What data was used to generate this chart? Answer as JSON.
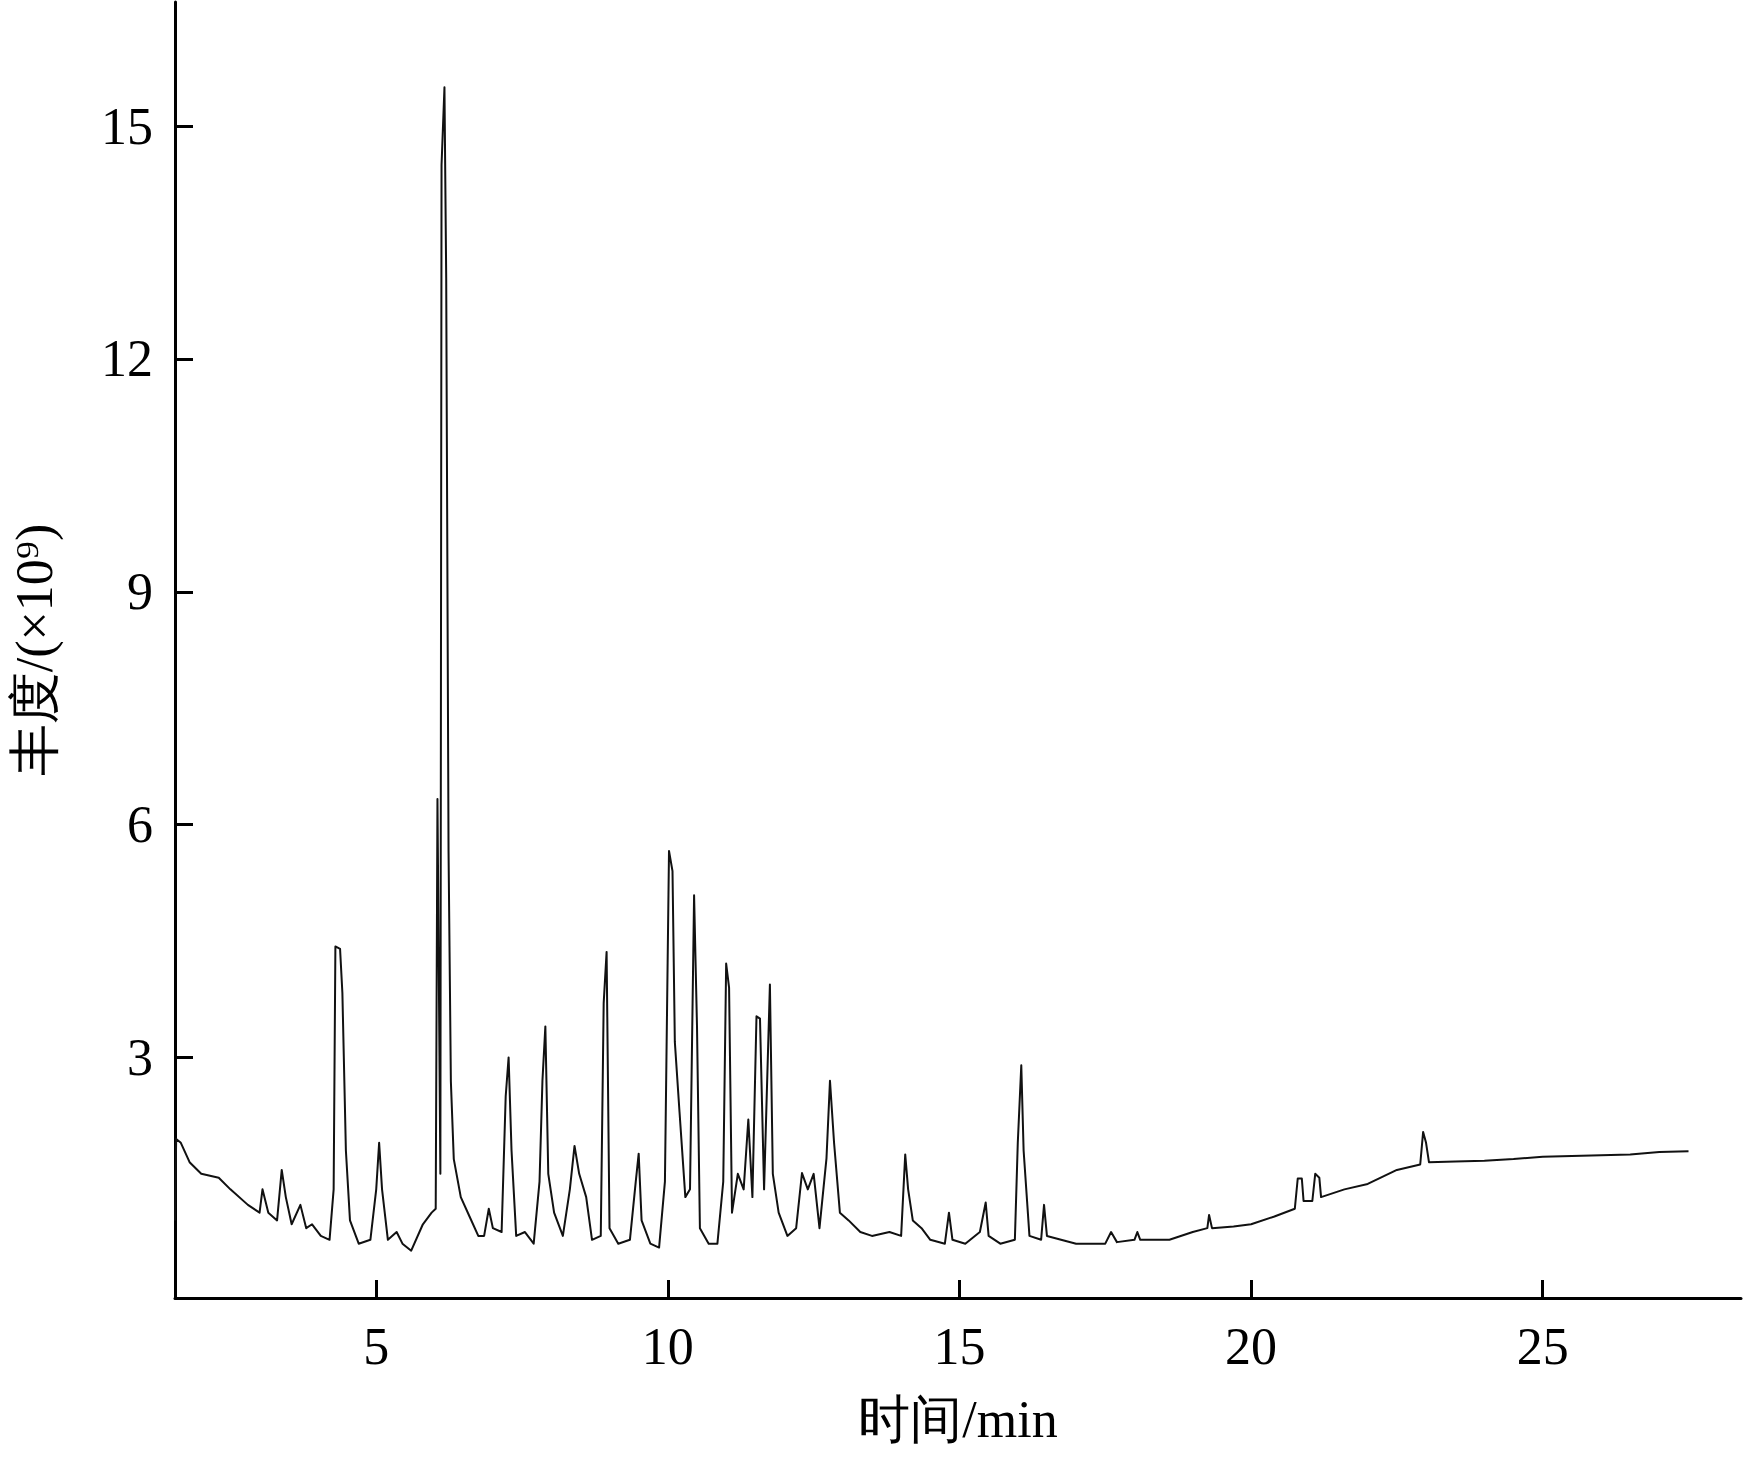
{
  "chart_data": {
    "type": "line",
    "xlabel": "时间/min",
    "ylabel": "丰度/(×10⁹)",
    "color": "#111111",
    "xlim": [
      1.55,
      28.4
    ],
    "xticks": [
      5,
      10,
      15,
      20,
      25
    ],
    "ylim": [
      -0.1,
      16.6
    ],
    "yticks": [
      3,
      6,
      9,
      12,
      15
    ],
    "grid": false,
    "marker": "none",
    "line_style": "solid",
    "x": [
      1.55,
      1.57,
      1.65,
      1.8,
      2.0,
      2.3,
      2.5,
      2.8,
      3.0,
      3.05,
      3.15,
      3.3,
      3.38,
      3.45,
      3.55,
      3.7,
      3.8,
      3.9,
      4.05,
      4.2,
      4.27,
      4.3,
      4.38,
      4.42,
      4.48,
      4.55,
      4.7,
      4.9,
      5.0,
      5.05,
      5.1,
      5.2,
      5.35,
      5.45,
      5.6,
      5.8,
      5.95,
      6.02,
      6.05,
      6.1,
      6.12,
      6.17,
      6.2,
      6.24,
      6.28,
      6.33,
      6.45,
      6.6,
      6.75,
      6.85,
      6.93,
      7.0,
      7.15,
      7.22,
      7.27,
      7.32,
      7.4,
      7.55,
      7.7,
      7.8,
      7.85,
      7.9,
      7.95,
      8.05,
      8.2,
      8.32,
      8.4,
      8.48,
      8.6,
      8.7,
      8.85,
      8.9,
      8.95,
      9.0,
      9.15,
      9.35,
      9.45,
      9.5,
      9.55,
      9.7,
      9.85,
      9.95,
      10.02,
      10.08,
      10.12,
      10.2,
      10.3,
      10.38,
      10.45,
      10.5,
      10.55,
      10.7,
      10.85,
      10.95,
      11.0,
      11.05,
      11.1,
      11.2,
      11.3,
      11.38,
      11.45,
      11.52,
      11.58,
      11.65,
      11.75,
      11.8,
      11.9,
      12.05,
      12.2,
      12.3,
      12.4,
      12.5,
      12.6,
      12.72,
      12.78,
      12.85,
      12.95,
      13.1,
      13.3,
      13.5,
      13.8,
      14.0,
      14.07,
      14.12,
      14.2,
      14.35,
      14.5,
      14.75,
      14.82,
      14.88,
      15.1,
      15.35,
      15.45,
      15.5,
      15.7,
      15.95,
      16.0,
      16.06,
      16.1,
      16.2,
      16.4,
      16.45,
      16.5,
      17.0,
      17.5,
      17.6,
      17.7,
      18.0,
      18.05,
      18.1,
      18.6,
      19.0,
      19.25,
      19.28,
      19.33,
      19.7,
      20.0,
      20.4,
      20.75,
      20.8,
      20.87,
      20.9,
      21.05,
      21.1,
      21.17,
      21.2,
      21.6,
      22.0,
      22.5,
      22.9,
      22.95,
      23.0,
      23.05,
      23.5,
      24.0,
      24.5,
      25.0,
      25.5,
      26.0,
      26.5,
      27.0,
      27.5
    ],
    "values": [
      0.9,
      1.95,
      1.9,
      1.65,
      1.5,
      1.45,
      1.3,
      1.1,
      1.0,
      1.3,
      1.0,
      0.9,
      1.55,
      1.2,
      0.85,
      1.1,
      0.8,
      0.85,
      0.7,
      0.65,
      1.3,
      4.43,
      4.4,
      3.83,
      1.8,
      0.9,
      0.6,
      0.65,
      1.3,
      1.9,
      1.3,
      0.65,
      0.75,
      0.6,
      0.51,
      0.85,
      1.0,
      1.05,
      6.33,
      1.5,
      14.5,
      15.5,
      13.04,
      5.66,
      2.69,
      1.69,
      1.2,
      0.95,
      0.7,
      0.7,
      1.05,
      0.8,
      0.75,
      2.5,
      3.0,
      1.8,
      0.7,
      0.75,
      0.6,
      1.4,
      2.7,
      3.4,
      1.5,
      1.0,
      0.7,
      1.3,
      1.86,
      1.5,
      1.2,
      0.65,
      0.7,
      3.7,
      4.36,
      0.8,
      0.6,
      0.65,
      1.4,
      1.76,
      0.9,
      0.6,
      0.55,
      1.4,
      5.66,
      5.4,
      3.2,
      2.3,
      1.2,
      1.3,
      5.09,
      3.4,
      0.8,
      0.6,
      0.6,
      1.4,
      4.21,
      3.9,
      1.0,
      1.5,
      1.3,
      2.2,
      1.2,
      3.53,
      3.5,
      1.3,
      3.94,
      1.5,
      1.0,
      0.7,
      0.8,
      1.51,
      1.3,
      1.5,
      0.8,
      1.7,
      2.7,
      1.9,
      1.0,
      0.9,
      0.75,
      0.7,
      0.75,
      0.7,
      1.75,
      1.3,
      0.9,
      0.8,
      0.65,
      0.6,
      1.0,
      0.65,
      0.6,
      0.75,
      1.13,
      0.7,
      0.6,
      0.65,
      1.9,
      2.9,
      1.8,
      0.7,
      0.65,
      1.1,
      0.7,
      0.6,
      0.6,
      0.75,
      0.62,
      0.65,
      0.75,
      0.65,
      0.65,
      0.75,
      0.8,
      0.97,
      0.8,
      0.82,
      0.85,
      0.95,
      1.05,
      1.44,
      1.44,
      1.15,
      1.15,
      1.5,
      1.45,
      1.2,
      1.3,
      1.37,
      1.55,
      1.62,
      2.04,
      1.9,
      1.65,
      1.66,
      1.67,
      1.69,
      1.72,
      1.73,
      1.74,
      1.75,
      1.78,
      1.79
    ]
  }
}
